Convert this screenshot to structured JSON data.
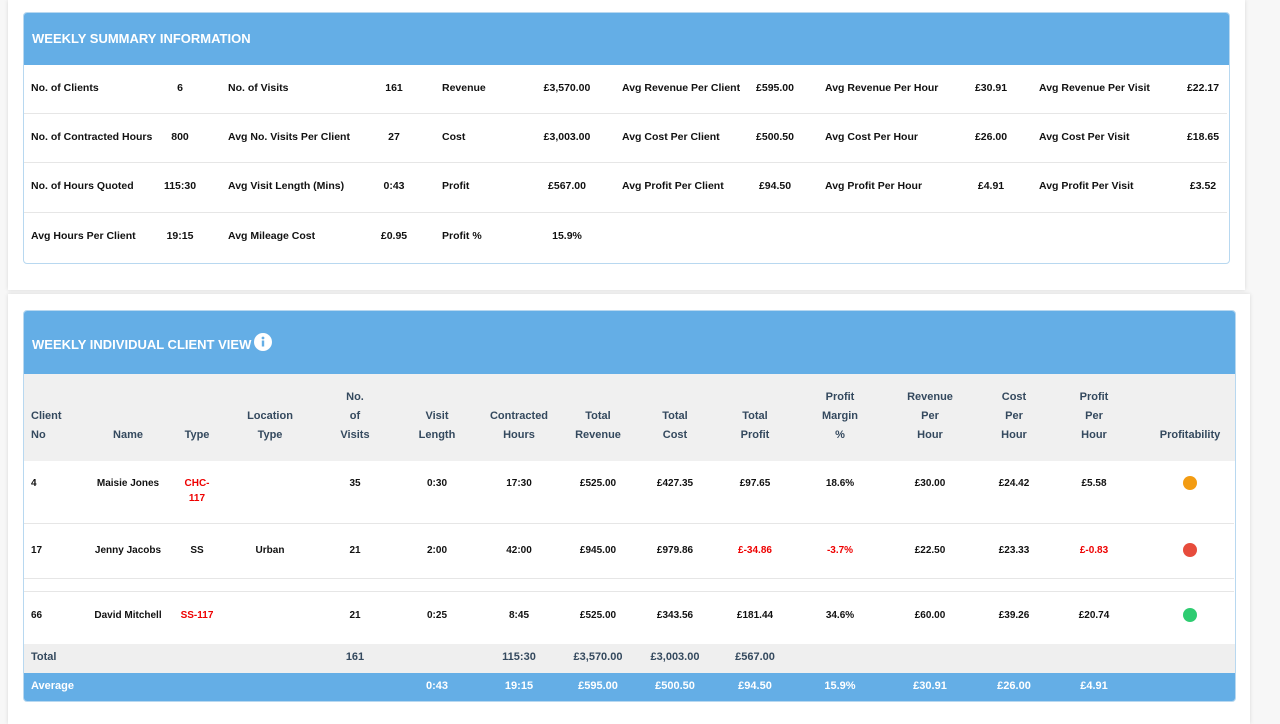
{
  "summary": {
    "title": "WEEKLY SUMMARY INFORMATION",
    "rows": [
      [
        {
          "label": "No. of Clients",
          "value": "6"
        },
        {
          "label": "No. of Visits",
          "value": "161"
        },
        {
          "label": "Revenue",
          "value": "£3,570.00"
        },
        {
          "label": "Avg Revenue Per Client",
          "value": "£595.00"
        },
        {
          "label": "Avg Revenue Per Hour",
          "value": "£30.91"
        },
        {
          "label": "Avg Revenue Per Visit",
          "value": "£22.17"
        }
      ],
      [
        {
          "label": "No. of Contracted Hours",
          "value": "800"
        },
        {
          "label": "Avg No. Visits Per Client",
          "value": "27"
        },
        {
          "label": "Cost",
          "value": "£3,003.00"
        },
        {
          "label": "Avg Cost Per Client",
          "value": "£500.50"
        },
        {
          "label": "Avg Cost Per Hour",
          "value": "£26.00"
        },
        {
          "label": "Avg Cost Per Visit",
          "value": "£18.65"
        }
      ],
      [
        {
          "label": "No. of Hours Quoted",
          "value": "115:30"
        },
        {
          "label": "Avg Visit Length (Mins)",
          "value": "0:43"
        },
        {
          "label": "Profit",
          "value": "£567.00"
        },
        {
          "label": "Avg Profit Per Client",
          "value": "£94.50"
        },
        {
          "label": "Avg Profit Per Hour",
          "value": "£4.91"
        },
        {
          "label": "Avg Profit Per Visit",
          "value": "£3.52"
        }
      ],
      [
        {
          "label": "Avg Hours Per Client",
          "value": "19:15"
        },
        {
          "label": "Avg Mileage Cost",
          "value": "£0.95"
        },
        {
          "label": "Profit %",
          "value": "15.9%"
        }
      ]
    ]
  },
  "client_view": {
    "title": "WEEKLY INDIVIDUAL CLIENT VIEW",
    "headers": [
      [
        "Client",
        "No"
      ],
      [
        "Name"
      ],
      [
        "Type"
      ],
      [
        "Location",
        "Type"
      ],
      [
        "No.",
        "of",
        "Visits"
      ],
      [
        "Visit",
        "Length"
      ],
      [
        "Contracted",
        "Hours"
      ],
      [
        "Total",
        "Revenue"
      ],
      [
        "Total",
        "Cost"
      ],
      [
        "Total",
        "Profit"
      ],
      [
        "Profit",
        "Margin",
        "%"
      ],
      [
        "Revenue",
        "Per",
        "Hour"
      ],
      [
        "Cost",
        "Per",
        "Hour"
      ],
      [
        "Profit",
        "Per",
        "Hour"
      ],
      [
        "Profitability"
      ]
    ],
    "rows": [
      {
        "cells": [
          "4",
          "Maisie Jones",
          "CHC-117",
          null,
          "35",
          "0:30",
          "17:30",
          "£525.00",
          "£427.35",
          "£97.65",
          "18.6%",
          "£30.00",
          "£24.42",
          "£5.58"
        ],
        "status_color": "#f39c12"
      },
      {
        "cells": [
          "17",
          "Jenny Jacobs",
          "SS",
          "Urban",
          "21",
          "2:00",
          "42:00",
          "£945.00",
          "£979.86",
          "£-34.86",
          "-3.7%",
          "£22.50",
          "£23.33",
          "£-0.83"
        ],
        "status_color": "#e74c3c"
      },
      {
        "cells": [
          "66",
          "David Mitchell",
          "SS-117",
          null,
          "21",
          "0:25",
          "8:45",
          "£525.00",
          "£343.56",
          "£181.44",
          "34.6%",
          "£60.00",
          "£39.26",
          "£20.74"
        ],
        "status_color": "#2ecc71"
      }
    ],
    "total": [
      "Total",
      null,
      null,
      null,
      "161",
      null,
      "115:30",
      "£3,570.00",
      "£3,003.00",
      "£567.00",
      null,
      null,
      null,
      null
    ],
    "average": [
      "Average",
      null,
      null,
      null,
      null,
      "0:43",
      "19:15",
      "£595.00",
      "£500.50",
      "£94.50",
      "15.9%",
      "£30.91",
      "£26.00",
      "£4.91"
    ]
  }
}
